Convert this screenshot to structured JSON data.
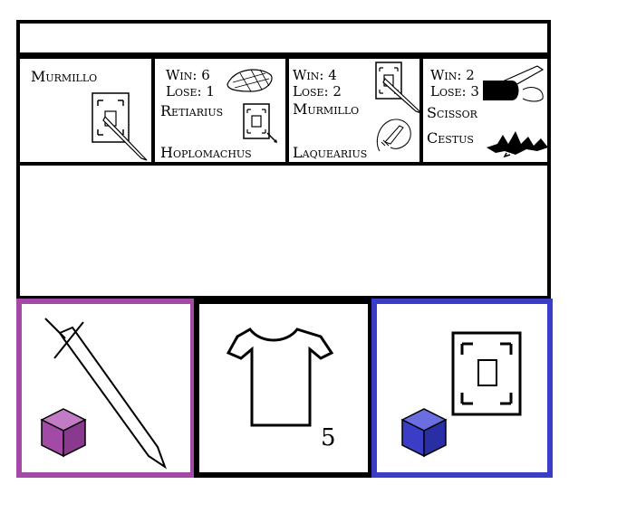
{
  "header": {
    "title": ""
  },
  "player": {
    "class": "Murmillo"
  },
  "opponents": [
    {
      "win_label": "Win: 6",
      "lose_label": "Lose: 1",
      "primary_class": "Retiarius",
      "secondary_class": "Hoplomachus",
      "icon_primary": "net-icon",
      "icon_secondary": "shield-icon"
    },
    {
      "win_label": "Win: 4",
      "lose_label": "Lose: 2",
      "primary_class": "Murmillo",
      "secondary_class": "Laquearius",
      "icon_primary": "sword-shield-icon",
      "icon_secondary": "lasso-icon"
    },
    {
      "win_label": "Win: 2",
      "lose_label": "Lose: 3",
      "primary_class": "Scissor",
      "secondary_class": "Cestus",
      "icon_primary": "arm-blade-icon",
      "icon_secondary": "spiked-glove-icon"
    }
  ],
  "message": {
    "text": ""
  },
  "equipment": {
    "weapon": {
      "icon": "sword-icon",
      "gem": "purple-cube-icon"
    },
    "armor": {
      "icon": "tunic-icon",
      "count": "5"
    },
    "shield": {
      "icon": "shield-icon",
      "gem": "blue-cube-icon"
    }
  },
  "colors": {
    "weapon_border": "#a24aa6",
    "armor_border": "#000000",
    "shield_border": "#3a3ec7",
    "purple_cube": "#a24aa6",
    "blue_cube": "#3a3ec7"
  }
}
